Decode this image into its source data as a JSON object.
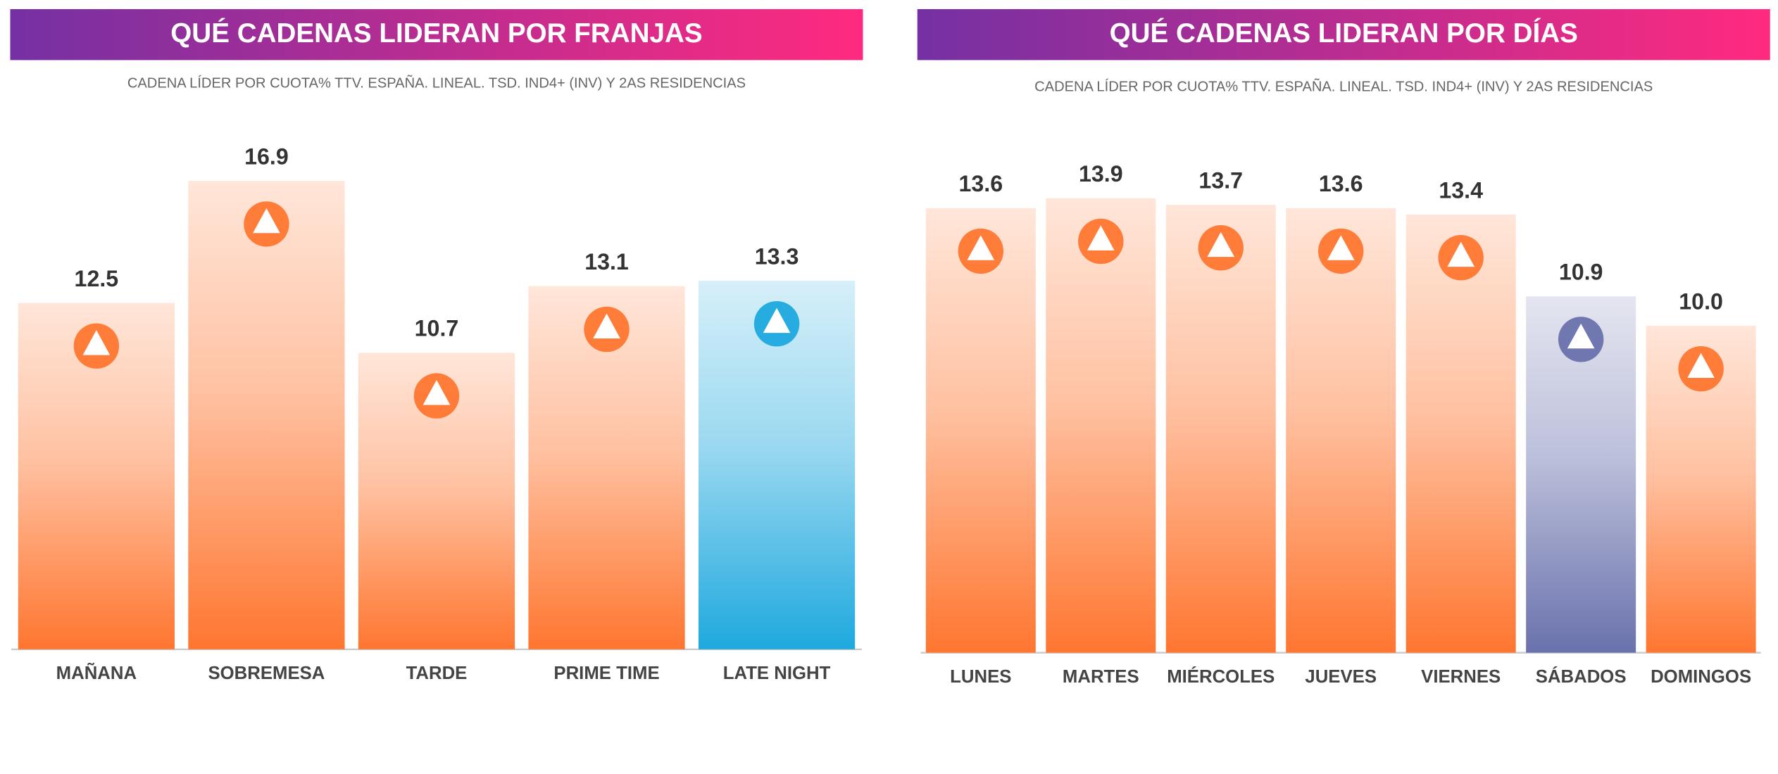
{
  "chart_data": [
    {
      "type": "bar",
      "title": "QUÉ CADENAS LIDERAN POR FRANJAS",
      "subtitle": "CADENA LÍDER POR CUOTA% TTV. ESPAÑA. LINEAL. TSD. IND4+ (INV) Y 2AS RESIDENCIAS",
      "categories": [
        "MAÑANA",
        "SOBREMESA",
        "TARDE",
        "PRIME TIME",
        "LATE NIGHT"
      ],
      "values": [
        12.5,
        16.9,
        10.7,
        13.1,
        13.3
      ],
      "colors": [
        "#ff7630",
        "#ff7630",
        "#ff7630",
        "#ff7630",
        "#1ea9de"
      ],
      "ylim": [
        0,
        18.4
      ]
    },
    {
      "type": "bar",
      "title": "QUÉ CADENAS LIDERAN POR DÍAS",
      "subtitle": "CADENA LÍDER POR CUOTA% TTV. ESPAÑA. LINEAL. TSD. IND4+ (INV) Y 2AS RESIDENCIAS",
      "categories": [
        "LUNES",
        "MARTES",
        "MIÉRCOLES",
        "JUEVES",
        "VIERNES",
        "SÁBADOS",
        "DOMINGOS"
      ],
      "values": [
        13.6,
        13.9,
        13.7,
        13.6,
        13.4,
        10.9,
        10.0
      ],
      "value_labels": [
        "13.6",
        "13.9",
        "13.7",
        "13.6",
        "13.4",
        "10.9",
        "10.0"
      ],
      "colors": [
        "#ff7630",
        "#ff7630",
        "#ff7630",
        "#ff7630",
        "#ff7630",
        "#6a72ad",
        "#ff7630"
      ],
      "ylim": [
        0,
        15.7
      ]
    }
  ]
}
